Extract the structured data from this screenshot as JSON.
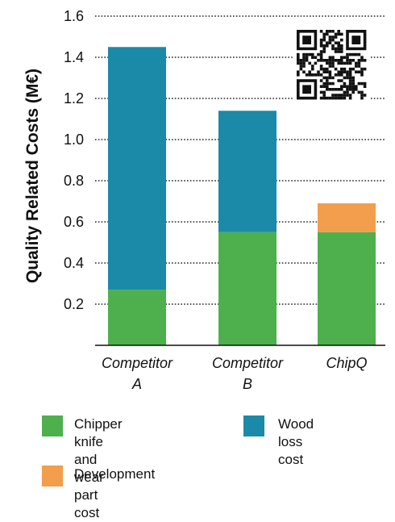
{
  "chart_data": {
    "type": "bar",
    "stacked": true,
    "title": "",
    "xlabel": "",
    "ylabel": "Quality Related Costs (M€)",
    "ylim": [
      0,
      1.6
    ],
    "yticks": [
      "0.2",
      "0.4",
      "0.6",
      "0.8",
      "1.0",
      "1.2",
      "1.4",
      "1.6"
    ],
    "grid": "dotted horizontal",
    "categories": [
      [
        "Competitor",
        "A"
      ],
      [
        "Competitor",
        "B"
      ],
      [
        "ChipQ"
      ]
    ],
    "series": [
      {
        "name": "Chipper knife and wear part cost",
        "color": "#4db04d",
        "values": [
          0.27,
          0.55,
          0.55
        ]
      },
      {
        "name": "Wood loss cost",
        "color": "#1b8aa8",
        "values": [
          1.18,
          0.59,
          0
        ]
      },
      {
        "name": "Development",
        "color": "#f29e4c",
        "values": [
          0,
          0,
          0.14
        ]
      }
    ],
    "legend": {
      "placement": "bottom",
      "items": [
        {
          "label": "Chipper knife and\nwear part cost",
          "color": "#4db04d"
        },
        {
          "label": "Wood loss cost",
          "color": "#1b8aa8"
        },
        {
          "label": "Development",
          "color": "#f29e4c"
        }
      ]
    },
    "qr_code": "qr-code-icon"
  }
}
